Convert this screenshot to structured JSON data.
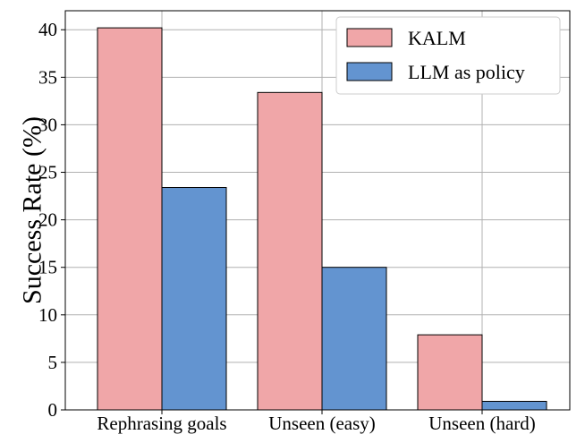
{
  "chart_data": {
    "type": "bar",
    "categories": [
      "Rephrasing goals",
      "Unseen (easy)",
      "Unseen (hard)"
    ],
    "series": [
      {
        "name": "KALM",
        "values": [
          40.2,
          33.4,
          7.9
        ],
        "color": "#f0a6a8"
      },
      {
        "name": "LLM as policy",
        "values": [
          23.4,
          15.0,
          0.9
        ],
        "color": "#6394d0"
      }
    ],
    "title": "",
    "xlabel": "",
    "ylabel": "Success Rate (%)",
    "ylim": [
      0,
      42
    ],
    "yticks": [
      0,
      5,
      10,
      15,
      20,
      25,
      30,
      35,
      40
    ],
    "grid": true,
    "legend_position": "top-right"
  }
}
